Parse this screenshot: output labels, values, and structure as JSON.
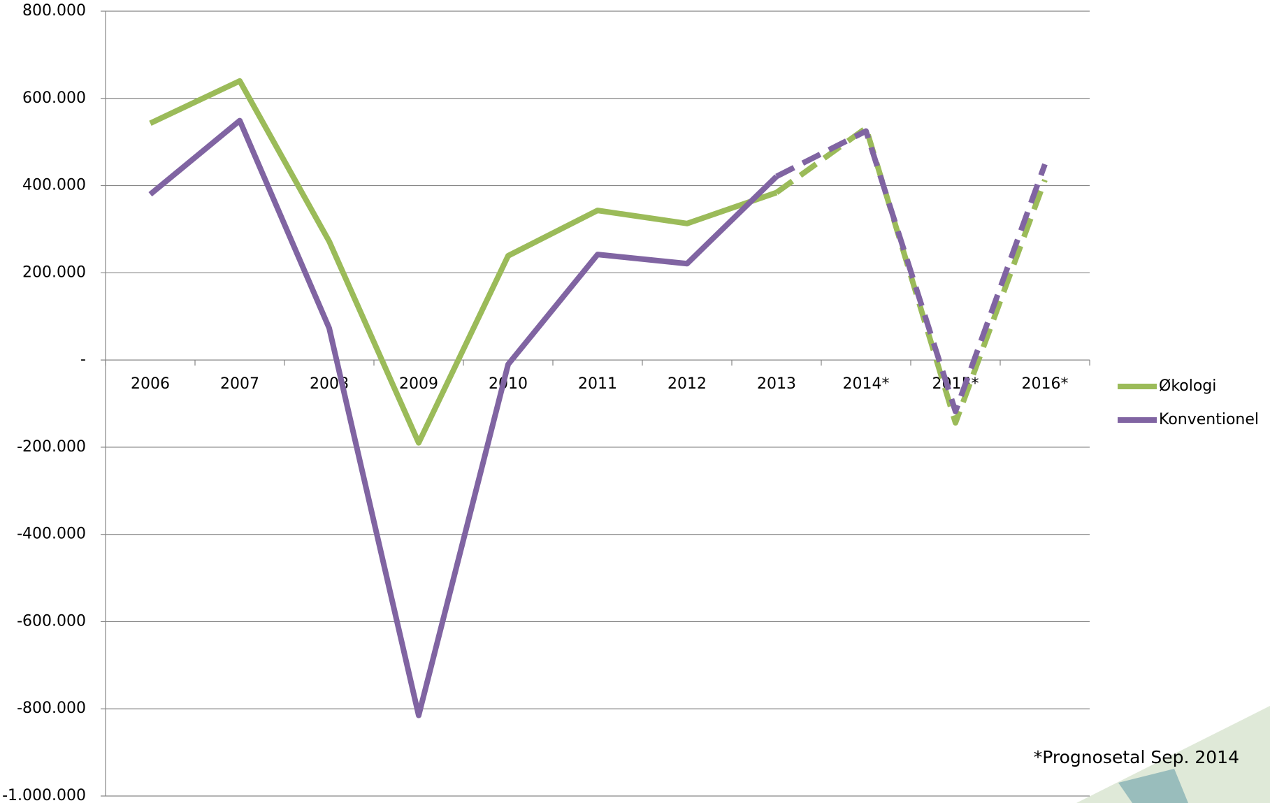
{
  "chart_data": {
    "type": "line",
    "categories": [
      "2006",
      "2007",
      "2008",
      "2009",
      "2010",
      "2011",
      "2012",
      "2013",
      "2014*",
      "2015*",
      "2016*"
    ],
    "series": [
      {
        "name": "Økologi",
        "color": "#9bbb59",
        "values": [
          543000,
          640000,
          272000,
          -190000,
          239000,
          343000,
          313000,
          384000,
          532000,
          -144000,
          413000
        ]
      },
      {
        "name": "Konventionel",
        "color": "#8064a2",
        "values": [
          380000,
          549000,
          73000,
          -815000,
          -10000,
          242000,
          221000,
          421000,
          525000,
          -118000,
          449000
        ]
      }
    ],
    "dash_from": 7,
    "ylim": [
      -1000000,
      800000
    ],
    "yticks": [
      {
        "value": -1000000,
        "label": "-1.000.000"
      },
      {
        "value": -800000,
        "label": "-800.000"
      },
      {
        "value": -600000,
        "label": "-600.000"
      },
      {
        "value": -400000,
        "label": "-400.000"
      },
      {
        "value": -200000,
        "label": "-200.000"
      },
      {
        "value": 0,
        "label": "-"
      },
      {
        "value": 200000,
        "label": "200.000"
      },
      {
        "value": 400000,
        "label": "400.000"
      },
      {
        "value": 600000,
        "label": "600.000"
      },
      {
        "value": 800000,
        "label": "800.000"
      }
    ],
    "grid": true,
    "legend": "right",
    "annotation": "*Prognosetal Sep. 2014"
  }
}
